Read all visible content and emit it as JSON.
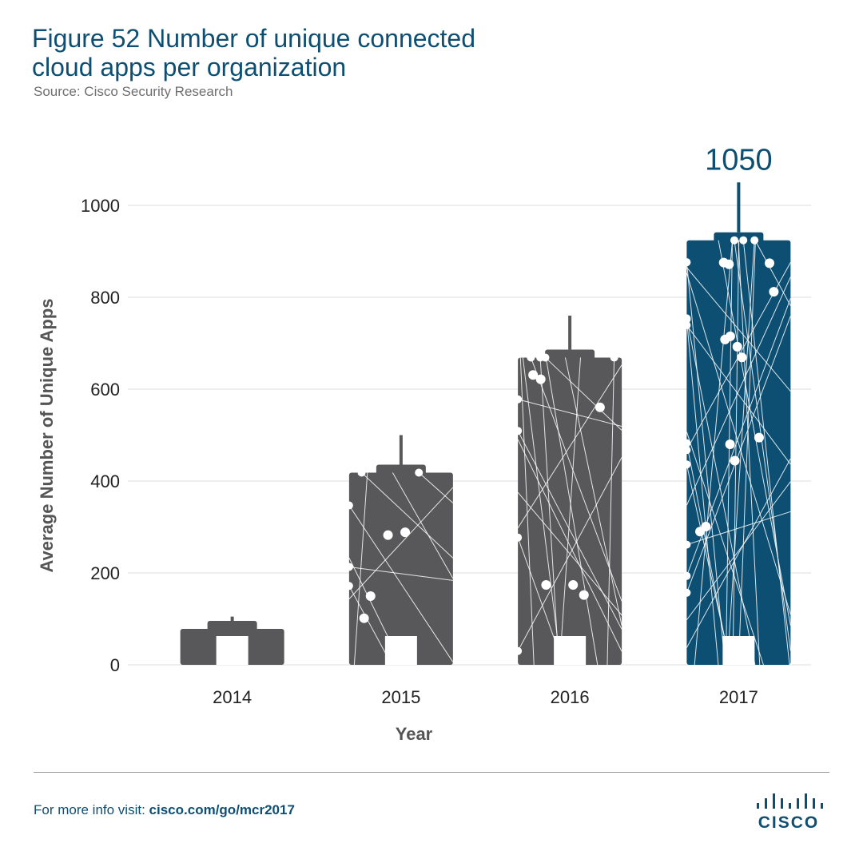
{
  "header": {
    "title_line1": "Figure 52  Number of unique connected",
    "title_line2": "cloud apps per organization",
    "source": "Source: Cisco Security Research"
  },
  "chart_data": {
    "type": "bar",
    "categories": [
      "2014",
      "2015",
      "2016",
      "2017"
    ],
    "values": [
      105,
      500,
      760,
      1050
    ],
    "data_labels": [
      "",
      "",
      "",
      "1050"
    ],
    "xlabel": "Year",
    "ylabel": "Average Number of Unique Apps",
    "ylim": [
      0,
      1000
    ],
    "yticks": [
      "0",
      "200",
      "400",
      "600",
      "800",
      "1000"
    ],
    "grid": true,
    "colors": {
      "default_bar": "#58585a",
      "highlight_bar": "#0d4f73",
      "grid": "#dcdcdc",
      "axis_text": "#222222",
      "axis_title": "#555555"
    }
  },
  "footer": {
    "prefix": "For more info visit: ",
    "link": "cisco.com/go/mcr2017",
    "logo_text": "CISCO"
  }
}
